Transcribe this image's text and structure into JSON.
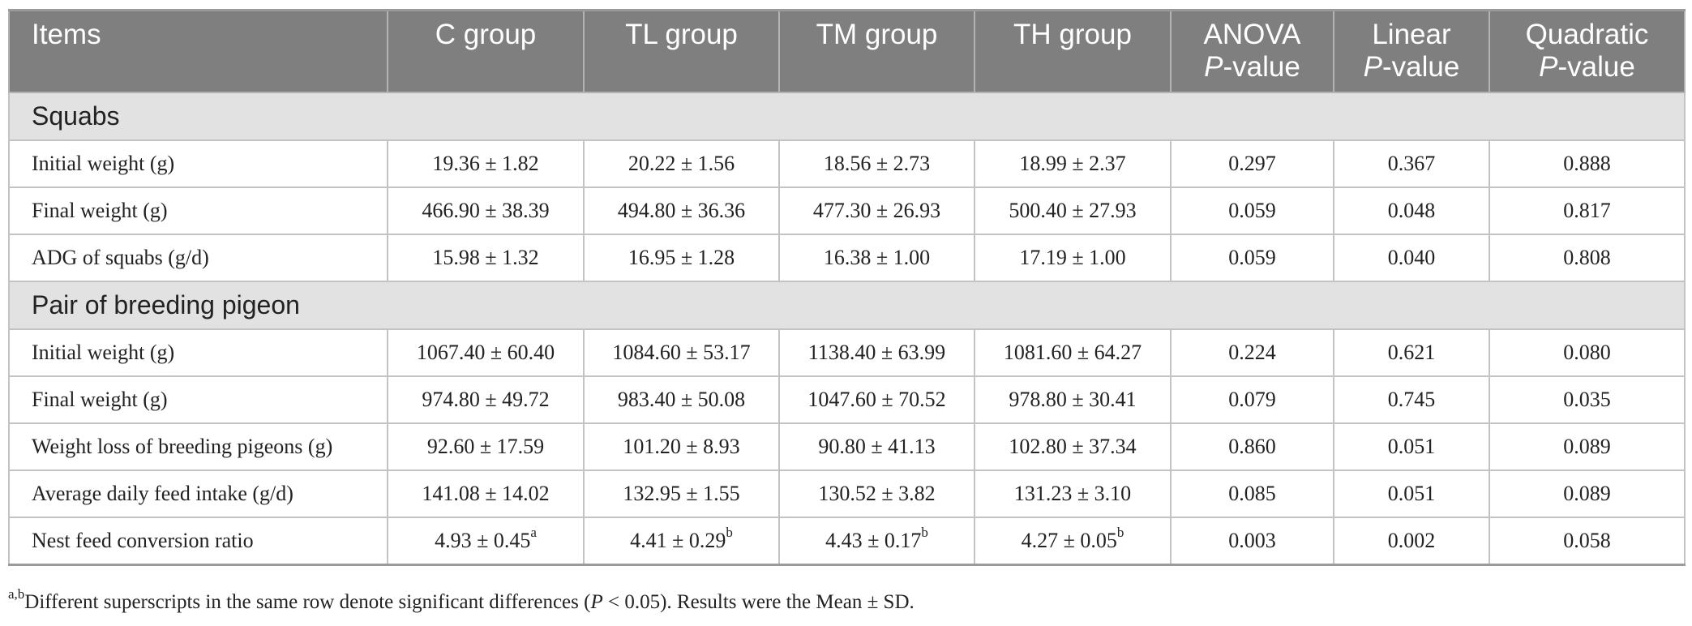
{
  "headers": {
    "items": "Items",
    "c_group": "C group",
    "tl_group": "TL group",
    "tm_group": "TM group",
    "th_group": "TH group",
    "anova_line1": "ANOVA",
    "linear_line1": "Linear",
    "quadratic_line1": "Quadratic",
    "p_italic": "P",
    "p_suffix": "-value"
  },
  "sections": [
    {
      "title": "Squabs",
      "rows": [
        {
          "item": "Initial weight (g)",
          "c": "19.36 ± 1.82",
          "c_sup": "",
          "tl": "20.22 ± 1.56",
          "tl_sup": "",
          "tm": "18.56 ± 2.73",
          "tm_sup": "",
          "th": "18.99 ± 2.37",
          "th_sup": "",
          "anova": "0.297",
          "linear": "0.367",
          "quadratic": "0.888"
        },
        {
          "item": "Final weight (g)",
          "c": "466.90 ± 38.39",
          "c_sup": "",
          "tl": "494.80 ± 36.36",
          "tl_sup": "",
          "tm": "477.30 ± 26.93",
          "tm_sup": "",
          "th": "500.40 ± 27.93",
          "th_sup": "",
          "anova": "0.059",
          "linear": "0.048",
          "quadratic": "0.817"
        },
        {
          "item": "ADG of squabs (g/d)",
          "c": "15.98 ± 1.32",
          "c_sup": "",
          "tl": "16.95 ± 1.28",
          "tl_sup": "",
          "tm": "16.38 ± 1.00",
          "tm_sup": "",
          "th": "17.19 ± 1.00",
          "th_sup": "",
          "anova": "0.059",
          "linear": "0.040",
          "quadratic": "0.808"
        }
      ]
    },
    {
      "title": "Pair of breeding pigeon",
      "rows": [
        {
          "item": "Initial weight (g)",
          "c": "1067.40 ± 60.40",
          "c_sup": "",
          "tl": "1084.60 ± 53.17",
          "tl_sup": "",
          "tm": "1138.40 ± 63.99",
          "tm_sup": "",
          "th": "1081.60 ± 64.27",
          "th_sup": "",
          "anova": "0.224",
          "linear": "0.621",
          "quadratic": "0.080"
        },
        {
          "item": "Final weight (g)",
          "c": "974.80 ± 49.72",
          "c_sup": "",
          "tl": "983.40 ± 50.08",
          "tl_sup": "",
          "tm": "1047.60 ± 70.52",
          "tm_sup": "",
          "th": "978.80 ± 30.41",
          "th_sup": "",
          "anova": "0.079",
          "linear": "0.745",
          "quadratic": "0.035"
        },
        {
          "item": "Weight loss of breeding pigeons (g)",
          "c": "92.60 ± 17.59",
          "c_sup": "",
          "tl": "101.20 ± 8.93",
          "tl_sup": "",
          "tm": "90.80 ± 41.13",
          "tm_sup": "",
          "th": "102.80 ± 37.34",
          "th_sup": "",
          "anova": "0.860",
          "linear": "0.051",
          "quadratic": "0.089"
        },
        {
          "item": "Average daily feed intake (g/d)",
          "c": "141.08 ± 14.02",
          "c_sup": "",
          "tl": "132.95 ± 1.55",
          "tl_sup": "",
          "tm": "130.52 ± 3.82",
          "tm_sup": "",
          "th": "131.23 ± 3.10",
          "th_sup": "",
          "anova": "0.085",
          "linear": "0.051",
          "quadratic": "0.089"
        },
        {
          "item": "Nest feed conversion ratio",
          "c": "4.93 ± 0.45",
          "c_sup": "a",
          "tl": "4.41 ± 0.29",
          "tl_sup": "b",
          "tm": "4.43 ± 0.17",
          "tm_sup": "b",
          "th": "4.27 ± 0.05",
          "th_sup": "b",
          "anova": "0.003",
          "linear": "0.002",
          "quadratic": "0.058"
        }
      ]
    }
  ],
  "footnote": {
    "superscript": "a,b",
    "text_before": "Different superscripts in the same row denote significant differences (",
    "p_italic": "P",
    "text_after": " < 0.05). Results were the Mean ± SD."
  }
}
